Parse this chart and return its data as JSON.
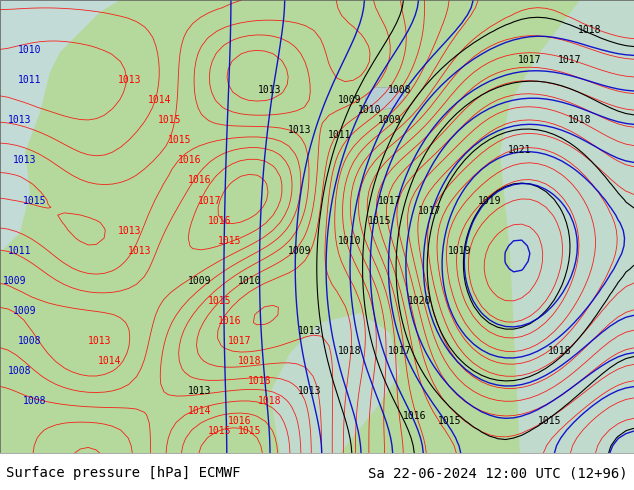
{
  "title_left": "Surface pressure [hPa] ECMWF",
  "title_right": "Sa 22-06-2024 12:00 UTC (12+96)",
  "background_color": "#ffffff",
  "map_bg_color": "#b5d99c",
  "footer_bg": "#ffffff",
  "footer_text_color": "#000000",
  "footer_fontsize": 10,
  "fig_width": 6.34,
  "fig_height": 4.9,
  "dpi": 100,
  "border_color": "#aaaaaa",
  "image_path": null
}
